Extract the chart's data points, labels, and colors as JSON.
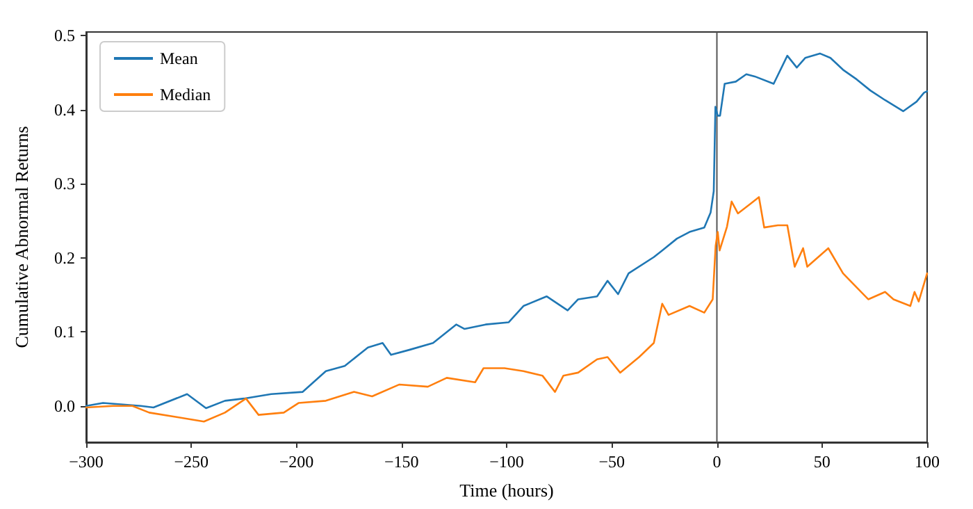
{
  "chart_data": {
    "type": "line",
    "xlabel": "Time (hours)",
    "ylabel": "Cumulative Abnormal Returns",
    "xlim": [
      -300,
      100
    ],
    "ylim": [
      -0.049,
      0.505
    ],
    "xticks": [
      {
        "value": -300,
        "label": "−300"
      },
      {
        "value": -250,
        "label": "−250"
      },
      {
        "value": -200,
        "label": "−200"
      },
      {
        "value": -150,
        "label": "−150"
      },
      {
        "value": -100,
        "label": "−100"
      },
      {
        "value": -50,
        "label": "−50"
      },
      0,
      50,
      100
    ],
    "yticks": [
      {
        "value": 0,
        "label": "0.0"
      },
      {
        "value": 0.1,
        "label": "0.1"
      },
      {
        "value": 0.2,
        "label": "0.2"
      },
      {
        "value": 0.3,
        "label": "0.3"
      },
      {
        "value": 0.4,
        "label": "0.4"
      },
      {
        "value": 0.5,
        "label": "0.5"
      }
    ],
    "grid": false,
    "legend": "top left",
    "marker": "none",
    "line_style": "solid",
    "ref_lines": [
      {
        "axis": "x",
        "value": 0,
        "color": "#555555"
      }
    ],
    "series": [
      {
        "name": "Mean",
        "color": "#1f77b4",
        "x": [
          -300,
          -292,
          -274,
          -268,
          -252,
          -243,
          -234,
          -225,
          -212,
          -197,
          -186,
          -177,
          -166,
          -159,
          -155,
          -146,
          -135,
          -124,
          -120,
          -110,
          -99,
          -92,
          -81,
          -71,
          -66,
          -57,
          -52,
          -47,
          -42,
          -30,
          -26,
          -19,
          -13,
          -6,
          -3,
          -1.5,
          -0.7,
          0.4,
          1.5,
          3.7,
          9,
          14,
          18,
          27,
          33.5,
          38,
          42,
          49,
          54,
          60,
          66.5,
          73,
          80,
          88.6,
          95,
          98.5,
          100
        ],
        "values": [
          0.0,
          0.004,
          0.0,
          -0.002,
          0.016,
          -0.003,
          0.007,
          0.01,
          0.016,
          0.019,
          0.047,
          0.054,
          0.079,
          0.085,
          0.069,
          0.076,
          0.085,
          0.11,
          0.104,
          0.11,
          0.113,
          0.135,
          0.148,
          0.129,
          0.144,
          0.148,
          0.169,
          0.151,
          0.179,
          0.201,
          0.21,
          0.226,
          0.235,
          0.241,
          0.261,
          0.29,
          0.404,
          0.392,
          0.392,
          0.435,
          0.438,
          0.448,
          0.445,
          0.435,
          0.473,
          0.457,
          0.47,
          0.476,
          0.47,
          0.454,
          0.441,
          0.426,
          0.413,
          0.398,
          0.411,
          0.423,
          0.425
        ]
      },
      {
        "name": "Median",
        "color": "#ff7f0e",
        "x": [
          -300,
          -287,
          -278,
          -270,
          -257,
          -244,
          -234,
          -224,
          -218,
          -206,
          -199,
          -186,
          -172.6,
          -164,
          -151,
          -137.5,
          -128.5,
          -115,
          -111,
          -101,
          -92,
          -83,
          -77,
          -73,
          -66,
          -57,
          -52,
          -46,
          -37,
          -30,
          -26,
          -23,
          -13,
          -6,
          -2,
          -0.6,
          0.4,
          1.3,
          4.8,
          7,
          10,
          16,
          20,
          22.5,
          29,
          33.5,
          37,
          41,
          43,
          53,
          60,
          66.5,
          72,
          80,
          84,
          92,
          94,
          96,
          100
        ],
        "values": [
          -0.002,
          0.0,
          0.0,
          -0.009,
          -0.015,
          -0.021,
          -0.009,
          0.01,
          -0.012,
          -0.009,
          0.004,
          0.007,
          0.019,
          0.013,
          0.029,
          0.026,
          0.038,
          0.032,
          0.051,
          0.051,
          0.047,
          0.041,
          0.019,
          0.041,
          0.045,
          0.063,
          0.066,
          0.045,
          0.066,
          0.085,
          0.138,
          0.123,
          0.135,
          0.126,
          0.144,
          0.216,
          0.235,
          0.21,
          0.242,
          0.276,
          0.26,
          0.273,
          0.282,
          0.241,
          0.244,
          0.244,
          0.188,
          0.213,
          0.188,
          0.213,
          0.179,
          0.16,
          0.144,
          0.154,
          0.144,
          0.135,
          0.154,
          0.141,
          0.179
        ]
      }
    ]
  }
}
